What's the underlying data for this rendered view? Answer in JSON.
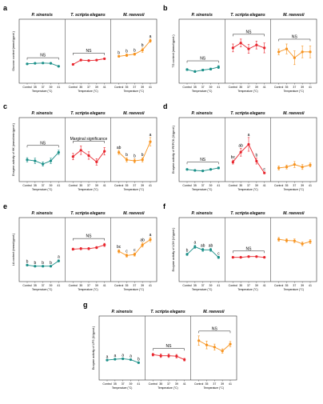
{
  "chart_data": [
    {
      "panel": "a",
      "type": "line",
      "ylabel": "Glucose content (mmol/gprot.)",
      "groups": [
        {
          "species": "P. sinensis",
          "color": "#1a8f88",
          "x": [
            "Control",
            "35",
            "37",
            "39",
            "41"
          ],
          "values": [
            0.54,
            0.56,
            0.57,
            0.56,
            0.45
          ],
          "errors": [
            0.02,
            0.02,
            0.02,
            0.02,
            0.02
          ],
          "letters": [
            "",
            "",
            "",
            "",
            ""
          ],
          "bracket": "NS"
        },
        {
          "species": "T. scripta elegans",
          "color": "#e8242c",
          "x": [
            "Control",
            "35",
            "37",
            "39",
            "41"
          ],
          "values": [
            0.52,
            0.68,
            0.66,
            0.68,
            0.73
          ],
          "errors": [
            0.02,
            0.03,
            0.02,
            0.02,
            0.03
          ],
          "letters": [
            "",
            "",
            "",
            "",
            ""
          ],
          "bracket": "NS"
        },
        {
          "species": "M. reevesii",
          "color": "#f7931e",
          "x": [
            "Control",
            "35",
            "37",
            "39",
            "41"
          ],
          "values": [
            0.82,
            0.86,
            0.9,
            1.05,
            1.4
          ],
          "errors": [
            0.03,
            0.05,
            0.04,
            0.08,
            0.06
          ],
          "letters": [
            "b",
            "b",
            "b",
            "b",
            "a"
          ],
          "bracket": ""
        }
      ]
    },
    {
      "panel": "b",
      "type": "line",
      "ylabel": "TG content (mmol/gprot.)",
      "groups": [
        {
          "species": "P. sinensis",
          "color": "#1a8f88",
          "x": [
            "Control",
            "35",
            "37",
            "39",
            "41"
          ],
          "values": [
            0.18,
            0.14,
            0.17,
            0.19,
            0.23
          ],
          "errors": [
            0.02,
            0.02,
            0.02,
            0.02,
            0.03
          ],
          "letters": [
            "",
            "",
            "",
            "",
            ""
          ],
          "bracket": "NS"
        },
        {
          "species": "T. scripta elegans",
          "color": "#e8242c",
          "x": [
            "Control",
            "35",
            "37",
            "39",
            "41"
          ],
          "values": [
            0.62,
            0.72,
            0.6,
            0.68,
            0.62
          ],
          "errors": [
            0.08,
            0.08,
            0.09,
            0.08,
            0.1
          ],
          "letters": [
            "",
            "",
            "",
            "",
            ""
          ],
          "bracket": "NS"
        },
        {
          "species": "M. reevesii",
          "color": "#f7931e",
          "x": [
            "Control",
            "35",
            "37",
            "39",
            "41"
          ],
          "values": [
            0.54,
            0.6,
            0.42,
            0.54,
            0.54
          ],
          "errors": [
            0.06,
            0.1,
            0.14,
            0.12,
            0.12
          ],
          "letters": [
            "",
            "",
            "",
            "",
            ""
          ],
          "bracket": "NS"
        }
      ]
    },
    {
      "panel": "c",
      "type": "line",
      "ylabel": "Enzyme activity of HK (mmol/min/gprot.)",
      "groups": [
        {
          "species": "P. sinensis",
          "color": "#1a8f88",
          "x": [
            "Control",
            "35",
            "37",
            "39",
            "41"
          ],
          "values": [
            0.32,
            0.3,
            0.24,
            0.3,
            0.46
          ],
          "errors": [
            0.04,
            0.05,
            0.04,
            0.05,
            0.04
          ],
          "letters": [
            "",
            "",
            "",
            "",
            ""
          ],
          "bracket": "NS"
        },
        {
          "species": "T. scripta elegans",
          "color": "#e8242c",
          "x": [
            "Control",
            "35",
            "37",
            "39",
            "41"
          ],
          "values": [
            0.38,
            0.5,
            0.4,
            0.28,
            0.48
          ],
          "errors": [
            0.06,
            0.08,
            0.07,
            0.06,
            0.07
          ],
          "letters": [
            "",
            "",
            "",
            "",
            ""
          ],
          "bracket": "Marginal significance"
        },
        {
          "species": "M. reevesii",
          "color": "#f7931e",
          "x": [
            "Control",
            "35",
            "37",
            "39",
            "41"
          ],
          "values": [
            0.46,
            0.32,
            0.3,
            0.32,
            0.66
          ],
          "errors": [
            0.04,
            0.04,
            0.04,
            0.04,
            0.08
          ],
          "letters": [
            "ab",
            "b",
            "b",
            "b",
            "a"
          ],
          "bracket": ""
        }
      ]
    },
    {
      "panel": "d",
      "type": "line",
      "ylabel": "Enzyme activity of PEPCK (U/gprot.)",
      "groups": [
        {
          "species": "P. sinensis",
          "color": "#1a8f88",
          "x": [
            "Control",
            "35",
            "37",
            "39",
            "41"
          ],
          "values": [
            0.15,
            0.13,
            0.12,
            0.15,
            0.18
          ],
          "errors": [
            0.01,
            0.01,
            0.01,
            0.01,
            0.02
          ],
          "letters": [
            "",
            "",
            "",
            "",
            ""
          ],
          "bracket": "NS"
        },
        {
          "species": "T. scripta elegans",
          "color": "#e8242c",
          "x": [
            "Control",
            "35",
            "37",
            "39",
            "41"
          ],
          "values": [
            0.3,
            0.5,
            0.66,
            0.32,
            0.08
          ],
          "errors": [
            0.04,
            0.08,
            0.14,
            0.06,
            0.02
          ],
          "letters": [
            "bc",
            "ab",
            "a",
            "b",
            "c"
          ],
          "bracket": ""
        },
        {
          "species": "M. reevesii",
          "color": "#f7931e",
          "x": [
            "Control",
            "35",
            "37",
            "39",
            "41"
          ],
          "values": [
            0.18,
            0.2,
            0.25,
            0.2,
            0.24
          ],
          "errors": [
            0.04,
            0.04,
            0.06,
            0.05,
            0.04
          ],
          "letters": [
            "",
            "",
            "",
            "",
            ""
          ],
          "bracket": ""
        }
      ]
    },
    {
      "panel": "e",
      "type": "line",
      "ylabel": "LA content (mmol/gprot.)",
      "groups": [
        {
          "species": "P. sinensis",
          "color": "#1a8f88",
          "x": [
            "Control",
            "35",
            "37",
            "39",
            "41"
          ],
          "values": [
            0.22,
            0.2,
            0.2,
            0.2,
            0.3
          ],
          "errors": [
            0.01,
            0.01,
            0.01,
            0.01,
            0.02
          ],
          "letters": [
            "b",
            "b",
            "b",
            "b",
            "a"
          ],
          "bracket": ""
        },
        {
          "species": "T. scripta elegans",
          "color": "#e8242c",
          "x": [
            "Control",
            "35",
            "37",
            "39",
            "41"
          ],
          "values": [
            0.52,
            0.53,
            0.53,
            0.55,
            0.6
          ],
          "errors": [
            0.02,
            0.02,
            0.02,
            0.02,
            0.03
          ],
          "letters": [
            "",
            "",
            "",
            "",
            ""
          ],
          "bracket": "NS"
        },
        {
          "species": "M. reevesii",
          "color": "#f7931e",
          "x": [
            "Control",
            "35",
            "37",
            "39",
            "41"
          ],
          "values": [
            0.48,
            0.4,
            0.42,
            0.6,
            0.7
          ],
          "errors": [
            0.03,
            0.03,
            0.03,
            0.04,
            0.04
          ],
          "letters": [
            "bc",
            "c",
            "c",
            "ab",
            "a"
          ],
          "bracket": ""
        }
      ]
    },
    {
      "panel": "f",
      "type": "line",
      "ylabel": "Enzyme activity of LDH (U/gprot.)",
      "groups": [
        {
          "species": "P. sinensis",
          "color": "#1a8f88",
          "x": [
            "Control",
            "35",
            "37",
            "39",
            "41"
          ],
          "values": [
            0.6,
            0.8,
            0.72,
            0.72,
            0.52
          ],
          "errors": [
            0.03,
            0.04,
            0.04,
            0.04,
            0.03
          ],
          "letters": [
            "b",
            "a",
            "ab",
            "ab",
            "c"
          ],
          "bracket": ""
        },
        {
          "species": "T. scripta elegans",
          "color": "#e8242c",
          "x": [
            "Control",
            "35",
            "37",
            "39",
            "41"
          ],
          "values": [
            0.52,
            0.52,
            0.54,
            0.54,
            0.52
          ],
          "errors": [
            0.02,
            0.02,
            0.02,
            0.02,
            0.02
          ],
          "letters": [
            "",
            "",
            "",
            "",
            ""
          ],
          "bracket": "NS"
        },
        {
          "species": "M. reevesii",
          "color": "#f7931e",
          "x": [
            "Control",
            "35",
            "37",
            "39",
            "41"
          ],
          "values": [
            1.0,
            0.97,
            0.96,
            0.88,
            0.94
          ],
          "errors": [
            0.05,
            0.05,
            0.05,
            0.05,
            0.05
          ],
          "letters": [
            "",
            "",
            "",
            "",
            ""
          ],
          "bracket": ""
        }
      ]
    },
    {
      "panel": "g",
      "type": "line",
      "ylabel": "Enzyme activity of LPS (U/gprot.)",
      "groups": [
        {
          "species": "P. sinensis",
          "color": "#1a8f88",
          "x": [
            "Control",
            "35",
            "37",
            "39",
            "41"
          ],
          "values": [
            0.7,
            0.74,
            0.76,
            0.72,
            0.58
          ],
          "errors": [
            0.03,
            0.03,
            0.03,
            0.03,
            0.03
          ],
          "letters": [
            "a",
            "a",
            "a",
            "a",
            "b"
          ],
          "bracket": ""
        },
        {
          "species": "T. scripta elegans",
          "color": "#e8242c",
          "x": [
            "Control",
            "35",
            "37",
            "39",
            "41"
          ],
          "values": [
            0.95,
            0.9,
            0.9,
            0.88,
            0.72
          ],
          "errors": [
            0.06,
            0.08,
            0.08,
            0.08,
            0.06
          ],
          "letters": [
            "",
            "",
            "",
            "",
            ""
          ],
          "bracket": "NS"
        },
        {
          "species": "M. reevesii",
          "color": "#f7931e",
          "x": [
            "Control",
            "35",
            "37",
            "39",
            "41"
          ],
          "values": [
            1.6,
            1.4,
            1.3,
            1.12,
            1.44
          ],
          "errors": [
            0.22,
            0.18,
            0.14,
            0.1,
            0.12
          ],
          "letters": [
            "",
            "",
            "",
            "",
            ""
          ],
          "bracket": "NS"
        }
      ]
    }
  ],
  "xlabel": "Temperature (°C)"
}
